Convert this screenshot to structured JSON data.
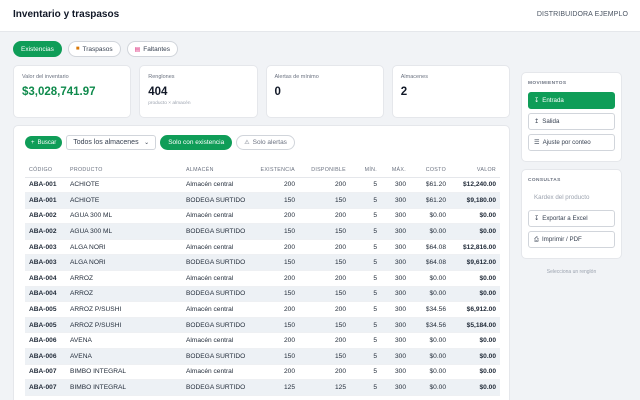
{
  "header": {
    "title": "Inventario y traspasos",
    "company": "DISTRIBUIDORA EJEMPLO"
  },
  "tabs": [
    {
      "label": "Existencias",
      "icon": "",
      "active": true
    },
    {
      "label": "Traspasos",
      "icon": "truck-icon",
      "active": false
    },
    {
      "label": "Faltantes",
      "icon": "list-icon",
      "active": false
    }
  ],
  "summary": {
    "total_value": {
      "label": "Valor del inventario",
      "value": "$3,028,741.97"
    },
    "rows": {
      "label": "Renglones",
      "value": "404",
      "sub": "producto × almacén"
    },
    "min_alerts": {
      "label": "Alertas de mínimo",
      "value": "0"
    },
    "warehouses": {
      "label": "Almacenes",
      "value": "2"
    }
  },
  "filters": {
    "search_label": "Buscar",
    "warehouse_select": "Todos los almacenes",
    "with_stock_label": "Solo con existencia",
    "alerts_only_label": "Solo alertas"
  },
  "table": {
    "headers": [
      "CÓDIGO",
      "PRODUCTO",
      "ALMACÉN",
      "EXISTENCIA",
      "DISPONIBLE",
      "MÍN.",
      "MÁX.",
      "COSTO",
      "VALOR"
    ],
    "rows": [
      [
        "ABA-001",
        "ACHIOTE",
        "Almacén central",
        "200",
        "200",
        "5",
        "300",
        "$61.20",
        "$12,240.00"
      ],
      [
        "ABA-001",
        "ACHIOTE",
        "BODEGA SURTIDO",
        "150",
        "150",
        "5",
        "300",
        "$61.20",
        "$9,180.00"
      ],
      [
        "ABA-002",
        "AGUA 300 ML",
        "Almacén central",
        "200",
        "200",
        "5",
        "300",
        "$0.00",
        "$0.00"
      ],
      [
        "ABA-002",
        "AGUA 300 ML",
        "BODEGA SURTIDO",
        "150",
        "150",
        "5",
        "300",
        "$0.00",
        "$0.00"
      ],
      [
        "ABA-003",
        "ALGA NORI",
        "Almacén central",
        "200",
        "200",
        "5",
        "300",
        "$64.08",
        "$12,816.00"
      ],
      [
        "ABA-003",
        "ALGA NORI",
        "BODEGA SURTIDO",
        "150",
        "150",
        "5",
        "300",
        "$64.08",
        "$9,612.00"
      ],
      [
        "ABA-004",
        "ARROZ",
        "Almacén central",
        "200",
        "200",
        "5",
        "300",
        "$0.00",
        "$0.00"
      ],
      [
        "ABA-004",
        "ARROZ",
        "BODEGA SURTIDO",
        "150",
        "150",
        "5",
        "300",
        "$0.00",
        "$0.00"
      ],
      [
        "ABA-005",
        "ARROZ P/SUSHI",
        "Almacén central",
        "200",
        "200",
        "5",
        "300",
        "$34.56",
        "$6,912.00"
      ],
      [
        "ABA-005",
        "ARROZ P/SUSHI",
        "BODEGA SURTIDO",
        "150",
        "150",
        "5",
        "300",
        "$34.56",
        "$5,184.00"
      ],
      [
        "ABA-006",
        "AVENA",
        "Almacén central",
        "200",
        "200",
        "5",
        "300",
        "$0.00",
        "$0.00"
      ],
      [
        "ABA-006",
        "AVENA",
        "BODEGA SURTIDO",
        "150",
        "150",
        "5",
        "300",
        "$0.00",
        "$0.00"
      ],
      [
        "ABA-007",
        "BIMBO INTEGRAL",
        "Almacén central",
        "200",
        "200",
        "5",
        "300",
        "$0.00",
        "$0.00"
      ],
      [
        "ABA-007",
        "BIMBO INTEGRAL",
        "BODEGA SURTIDO",
        "125",
        "125",
        "5",
        "300",
        "$0.00",
        "$0.00"
      ]
    ]
  },
  "side": {
    "movements_title": "MOVIMIENTOS",
    "movements": [
      {
        "label": "Entrada",
        "icon": "arrow-down-icon",
        "active": true
      },
      {
        "label": "Salida",
        "icon": "arrow-up-icon",
        "active": false
      },
      {
        "label": "Ajuste por conteo",
        "icon": "adjust-icon",
        "active": false
      }
    ],
    "queries_title": "CONSULTAS",
    "queries": [
      {
        "label": "Kardex del producto",
        "icon": "",
        "disabled": true
      },
      {
        "label": "Exportar a Excel",
        "icon": "download-icon",
        "disabled": false
      },
      {
        "label": "Imprimir / PDF",
        "icon": "print-icon",
        "disabled": false
      }
    ],
    "hint": "Selecciona un renglón"
  },
  "colors": {
    "accent": "#0f9d58",
    "value_green": "#0f8a4c",
    "row_alt": "#edf1f5"
  }
}
